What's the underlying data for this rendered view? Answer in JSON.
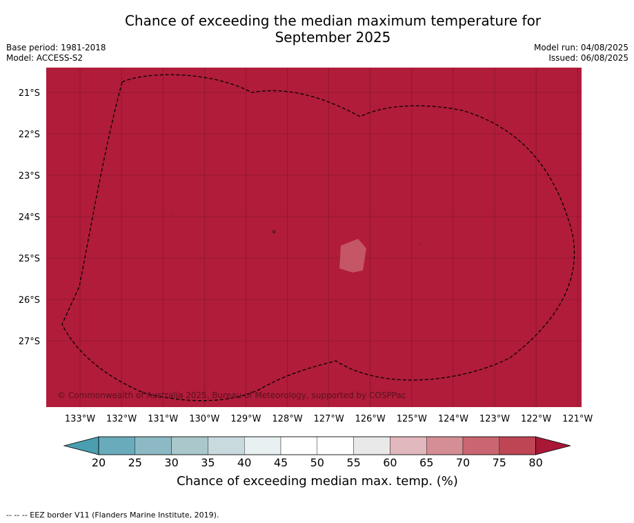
{
  "title": {
    "line1": "Chance of exceeding the median maximum temperature for",
    "line2": "September 2025"
  },
  "info_left": {
    "base_period": "Base period: 1981-2018",
    "model": "Model: ACCESS-S2"
  },
  "info_right": {
    "model_run": "Model run: 04/08/2025",
    "issued": "Issued: 06/08/2025"
  },
  "map": {
    "fill_color": "#b01c3a",
    "lat_ticks": [
      "21°S",
      "22°S",
      "23°S",
      "24°S",
      "25°S",
      "26°S",
      "27°S"
    ],
    "lon_ticks": [
      "133°W",
      "132°W",
      "131°W",
      "130°W",
      "129°W",
      "128°W",
      "127°W",
      "126°W",
      "125°W",
      "124°W",
      "123°W",
      "122°W",
      "121°W"
    ],
    "copyright": "© Commonwealth of Australia 2025, Bureau of Meteorology, supported by COSPPac"
  },
  "colorbar": {
    "labels": [
      "20",
      "25",
      "30",
      "35",
      "40",
      "45",
      "50",
      "55",
      "60",
      "65",
      "70",
      "75",
      "80"
    ],
    "colors": [
      "#6aabbb",
      "#8cb9c4",
      "#aac7cc",
      "#c9dade",
      "#e9f0f2",
      "#ffffff",
      "#ffffff",
      "#e9e9e9",
      "#e0b8bd",
      "#d58d96",
      "#c96671",
      "#bd4554"
    ],
    "under_color": "#4a9eaf",
    "over_color": "#a81836",
    "title": "Chance of exceeding median max. temp. (%)"
  },
  "footnote": "--  --  -- EEZ border V11 (Flanders Marine Institute, 2019)."
}
